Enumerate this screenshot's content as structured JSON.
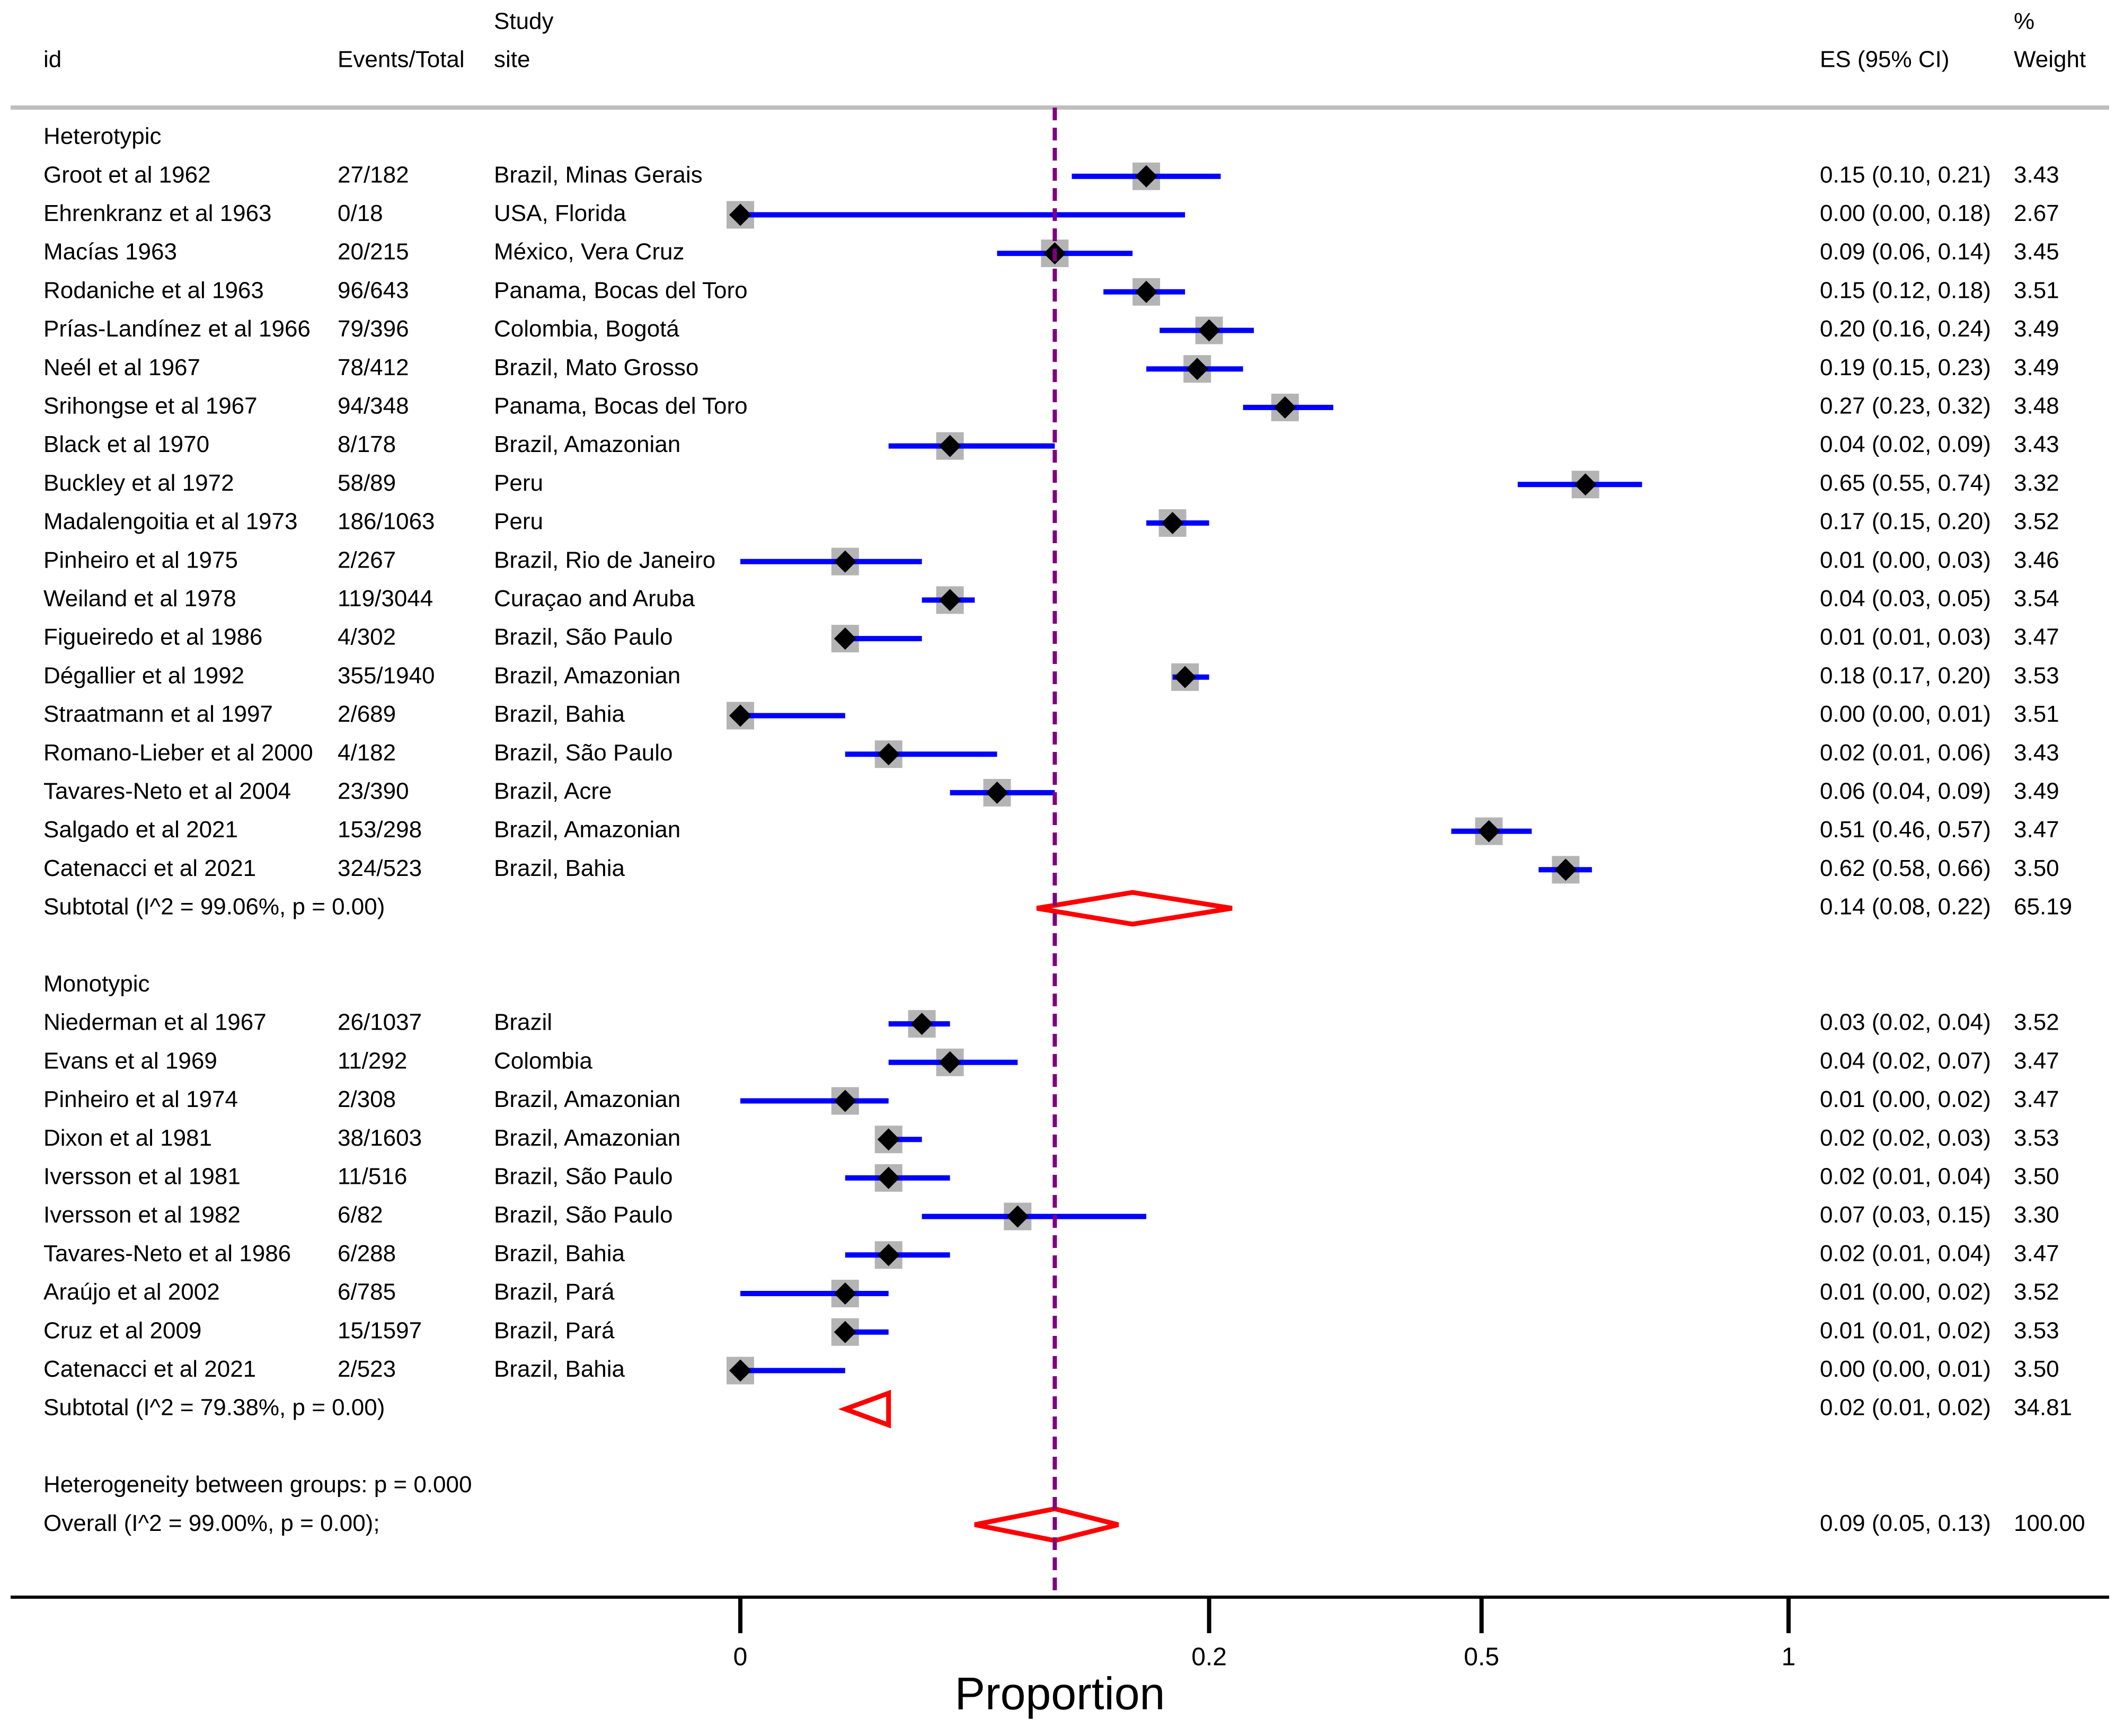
{
  "headers": {
    "id": "id",
    "events": "Events/Total",
    "site_line1": "Study",
    "site_line2": "site",
    "es": "ES (95% CI)",
    "weight_line1": "%",
    "weight_line2": "Weight"
  },
  "colors": {
    "ci_line": "#0000ff",
    "weight_box": "#b4b4b4",
    "point": "#000000",
    "diamond": "#ff0000",
    "overall_line": "#800080",
    "header_rule": "#bebebe"
  },
  "groups": [
    {
      "name": "Heterotypic",
      "studies": [
        {
          "id": "Groot et al 1962",
          "events": "27/182",
          "site": "Brazil, Minas Gerais",
          "es": 0.15,
          "lo": 0.1,
          "hi": 0.21,
          "es_ci": "0.15 (0.10, 0.21)",
          "weight": "3.43"
        },
        {
          "id": "Ehrenkranz et al 1963",
          "events": "0/18",
          "site": "USA, Florida",
          "es": 0.0,
          "lo": 0.0,
          "hi": 0.18,
          "es_ci": "0.00 (0.00, 0.18)",
          "weight": "2.67"
        },
        {
          "id": "Macías 1963",
          "events": "20/215",
          "site": "México, Vera Cruz",
          "es": 0.09,
          "lo": 0.06,
          "hi": 0.14,
          "es_ci": "0.09 (0.06, 0.14)",
          "weight": "3.45"
        },
        {
          "id": "Rodaniche et al 1963",
          "events": "96/643",
          "site": "Panama, Bocas del Toro",
          "es": 0.15,
          "lo": 0.12,
          "hi": 0.18,
          "es_ci": "0.15 (0.12, 0.18)",
          "weight": "3.51"
        },
        {
          "id": "Prías-Landínez et al 1966",
          "events": "79/396",
          "site": "Colombia, Bogotá",
          "es": 0.2,
          "lo": 0.16,
          "hi": 0.24,
          "es_ci": "0.20 (0.16, 0.24)",
          "weight": "3.49"
        },
        {
          "id": "Neél et al 1967",
          "events": "78/412",
          "site": "Brazil, Mato Grosso",
          "es": 0.19,
          "lo": 0.15,
          "hi": 0.23,
          "es_ci": "0.19 (0.15, 0.23)",
          "weight": "3.49"
        },
        {
          "id": "Srihongse et al 1967",
          "events": "94/348",
          "site": "Panama, Bocas del Toro",
          "es": 0.27,
          "lo": 0.23,
          "hi": 0.32,
          "es_ci": "0.27 (0.23, 0.32)",
          "weight": "3.48"
        },
        {
          "id": "Black et al 1970",
          "events": "8/178",
          "site": "Brazil, Amazonian",
          "es": 0.04,
          "lo": 0.02,
          "hi": 0.09,
          "es_ci": "0.04 (0.02, 0.09)",
          "weight": "3.43"
        },
        {
          "id": "Buckley et al 1972",
          "events": "58/89",
          "site": "Peru",
          "es": 0.65,
          "lo": 0.55,
          "hi": 0.74,
          "es_ci": "0.65 (0.55, 0.74)",
          "weight": "3.32"
        },
        {
          "id": "Madalengoitia et al 1973",
          "events": "186/1063",
          "site": "Peru",
          "es": 0.17,
          "lo": 0.15,
          "hi": 0.2,
          "es_ci": "0.17 (0.15, 0.20)",
          "weight": "3.52"
        },
        {
          "id": "Pinheiro et al 1975",
          "events": "2/267",
          "site": "Brazil, Rio de Janeiro",
          "es": 0.01,
          "lo": 0.0,
          "hi": 0.03,
          "es_ci": "0.01 (0.00, 0.03)",
          "weight": "3.46"
        },
        {
          "id": "Weiland et al 1978",
          "events": "119/3044",
          "site": "Curaçao and Aruba",
          "es": 0.04,
          "lo": 0.03,
          "hi": 0.05,
          "es_ci": "0.04 (0.03, 0.05)",
          "weight": "3.54"
        },
        {
          "id": "Figueiredo et al 1986",
          "events": "4/302",
          "site": "Brazil, São Paulo",
          "es": 0.01,
          "lo": 0.01,
          "hi": 0.03,
          "es_ci": "0.01 (0.01, 0.03)",
          "weight": "3.47"
        },
        {
          "id": "Dégallier et al 1992",
          "events": "355/1940",
          "site": "Brazil, Amazonian",
          "es": 0.18,
          "lo": 0.17,
          "hi": 0.2,
          "es_ci": "0.18 (0.17, 0.20)",
          "weight": "3.53"
        },
        {
          "id": "Straatmann et al 1997",
          "events": "2/689",
          "site": "Brazil, Bahia",
          "es": 0.0,
          "lo": 0.0,
          "hi": 0.01,
          "es_ci": "0.00 (0.00, 0.01)",
          "weight": "3.51"
        },
        {
          "id": "Romano-Lieber et al 2000",
          "events": "4/182",
          "site": "Brazil, São Paulo",
          "es": 0.02,
          "lo": 0.01,
          "hi": 0.06,
          "es_ci": "0.02 (0.01, 0.06)",
          "weight": "3.43"
        },
        {
          "id": "Tavares-Neto et al 2004",
          "events": "23/390",
          "site": "Brazil, Acre",
          "es": 0.06,
          "lo": 0.04,
          "hi": 0.09,
          "es_ci": "0.06 (0.04, 0.09)",
          "weight": "3.49"
        },
        {
          "id": "Salgado et al 2021",
          "events": "153/298",
          "site": "Brazil, Amazonian",
          "es": 0.51,
          "lo": 0.46,
          "hi": 0.57,
          "es_ci": "0.51 (0.46, 0.57)",
          "weight": "3.47"
        },
        {
          "id": "Catenacci et al 2021",
          "events": "324/523",
          "site": "Brazil, Bahia",
          "es": 0.62,
          "lo": 0.58,
          "hi": 0.66,
          "es_ci": "0.62 (0.58, 0.66)",
          "weight": "3.50"
        }
      ],
      "subtotal": {
        "label": "Subtotal  (I^2 = 99.06%, p = 0.00)",
        "es": 0.14,
        "lo": 0.08,
        "hi": 0.22,
        "es_ci": "0.14 (0.08, 0.22)",
        "weight": "65.19"
      }
    },
    {
      "name": "Monotypic",
      "studies": [
        {
          "id": "Niederman et al 1967",
          "events": "26/1037",
          "site": "Brazil",
          "es": 0.03,
          "lo": 0.02,
          "hi": 0.04,
          "es_ci": "0.03 (0.02, 0.04)",
          "weight": "3.52"
        },
        {
          "id": "Evans et al 1969",
          "events": "11/292",
          "site": "Colombia",
          "es": 0.04,
          "lo": 0.02,
          "hi": 0.07,
          "es_ci": "0.04 (0.02, 0.07)",
          "weight": "3.47"
        },
        {
          "id": "Pinheiro et al 1974",
          "events": "2/308",
          "site": "Brazil, Amazonian",
          "es": 0.01,
          "lo": 0.0,
          "hi": 0.02,
          "es_ci": "0.01 (0.00, 0.02)",
          "weight": "3.47"
        },
        {
          "id": "Dixon et al 1981",
          "events": "38/1603",
          "site": "Brazil, Amazonian",
          "es": 0.02,
          "lo": 0.02,
          "hi": 0.03,
          "es_ci": "0.02 (0.02, 0.03)",
          "weight": "3.53"
        },
        {
          "id": "Iversson et al 1981",
          "events": "11/516",
          "site": "Brazil, São Paulo",
          "es": 0.02,
          "lo": 0.01,
          "hi": 0.04,
          "es_ci": "0.02 (0.01, 0.04)",
          "weight": "3.50"
        },
        {
          "id": "Iversson et al 1982",
          "events": "6/82",
          "site": "Brazil, São Paulo",
          "es": 0.07,
          "lo": 0.03,
          "hi": 0.15,
          "es_ci": "0.07 (0.03, 0.15)",
          "weight": "3.30"
        },
        {
          "id": "Tavares-Neto et al 1986",
          "events": "6/288",
          "site": "Brazil, Bahia",
          "es": 0.02,
          "lo": 0.01,
          "hi": 0.04,
          "es_ci": "0.02 (0.01, 0.04)",
          "weight": "3.47"
        },
        {
          "id": "Araújo et al 2002",
          "events": "6/785",
          "site": "Brazil, Pará",
          "es": 0.01,
          "lo": 0.0,
          "hi": 0.02,
          "es_ci": "0.01 (0.00, 0.02)",
          "weight": "3.52"
        },
        {
          "id": "Cruz et al 2009",
          "events": "15/1597",
          "site": "Brazil, Pará",
          "es": 0.01,
          "lo": 0.01,
          "hi": 0.02,
          "es_ci": "0.01 (0.01, 0.02)",
          "weight": "3.53"
        },
        {
          "id": "Catenacci et al 2021",
          "events": "2/523",
          "site": "Brazil, Bahia",
          "es": 0.0,
          "lo": 0.0,
          "hi": 0.01,
          "es_ci": "0.00 (0.00, 0.01)",
          "weight": "3.50"
        }
      ],
      "subtotal": {
        "label": "Subtotal  (I^2 = 79.38%, p = 0.00)",
        "es": 0.02,
        "lo": 0.01,
        "hi": 0.02,
        "es_ci": "0.02 (0.01, 0.02)",
        "weight": "34.81"
      }
    }
  ],
  "heterogeneity": "Heterogeneity between groups: p = 0.000",
  "overall": {
    "label": "Overall  (I^2 = 99.00%, p = 0.00);",
    "es": 0.09,
    "lo": 0.05,
    "hi": 0.13,
    "es_ci": "0.09 (0.05, 0.13)",
    "weight": "100.00"
  },
  "chart_data": {
    "type": "forest",
    "xlabel": "Proportion",
    "scale": "sqrt",
    "xlim": [
      0,
      1
    ],
    "ticks": [
      0,
      0.2,
      0.5,
      1
    ],
    "tick_labels": [
      "0",
      "0.2",
      "0.5",
      "1"
    ],
    "reference_line": 0.09
  }
}
